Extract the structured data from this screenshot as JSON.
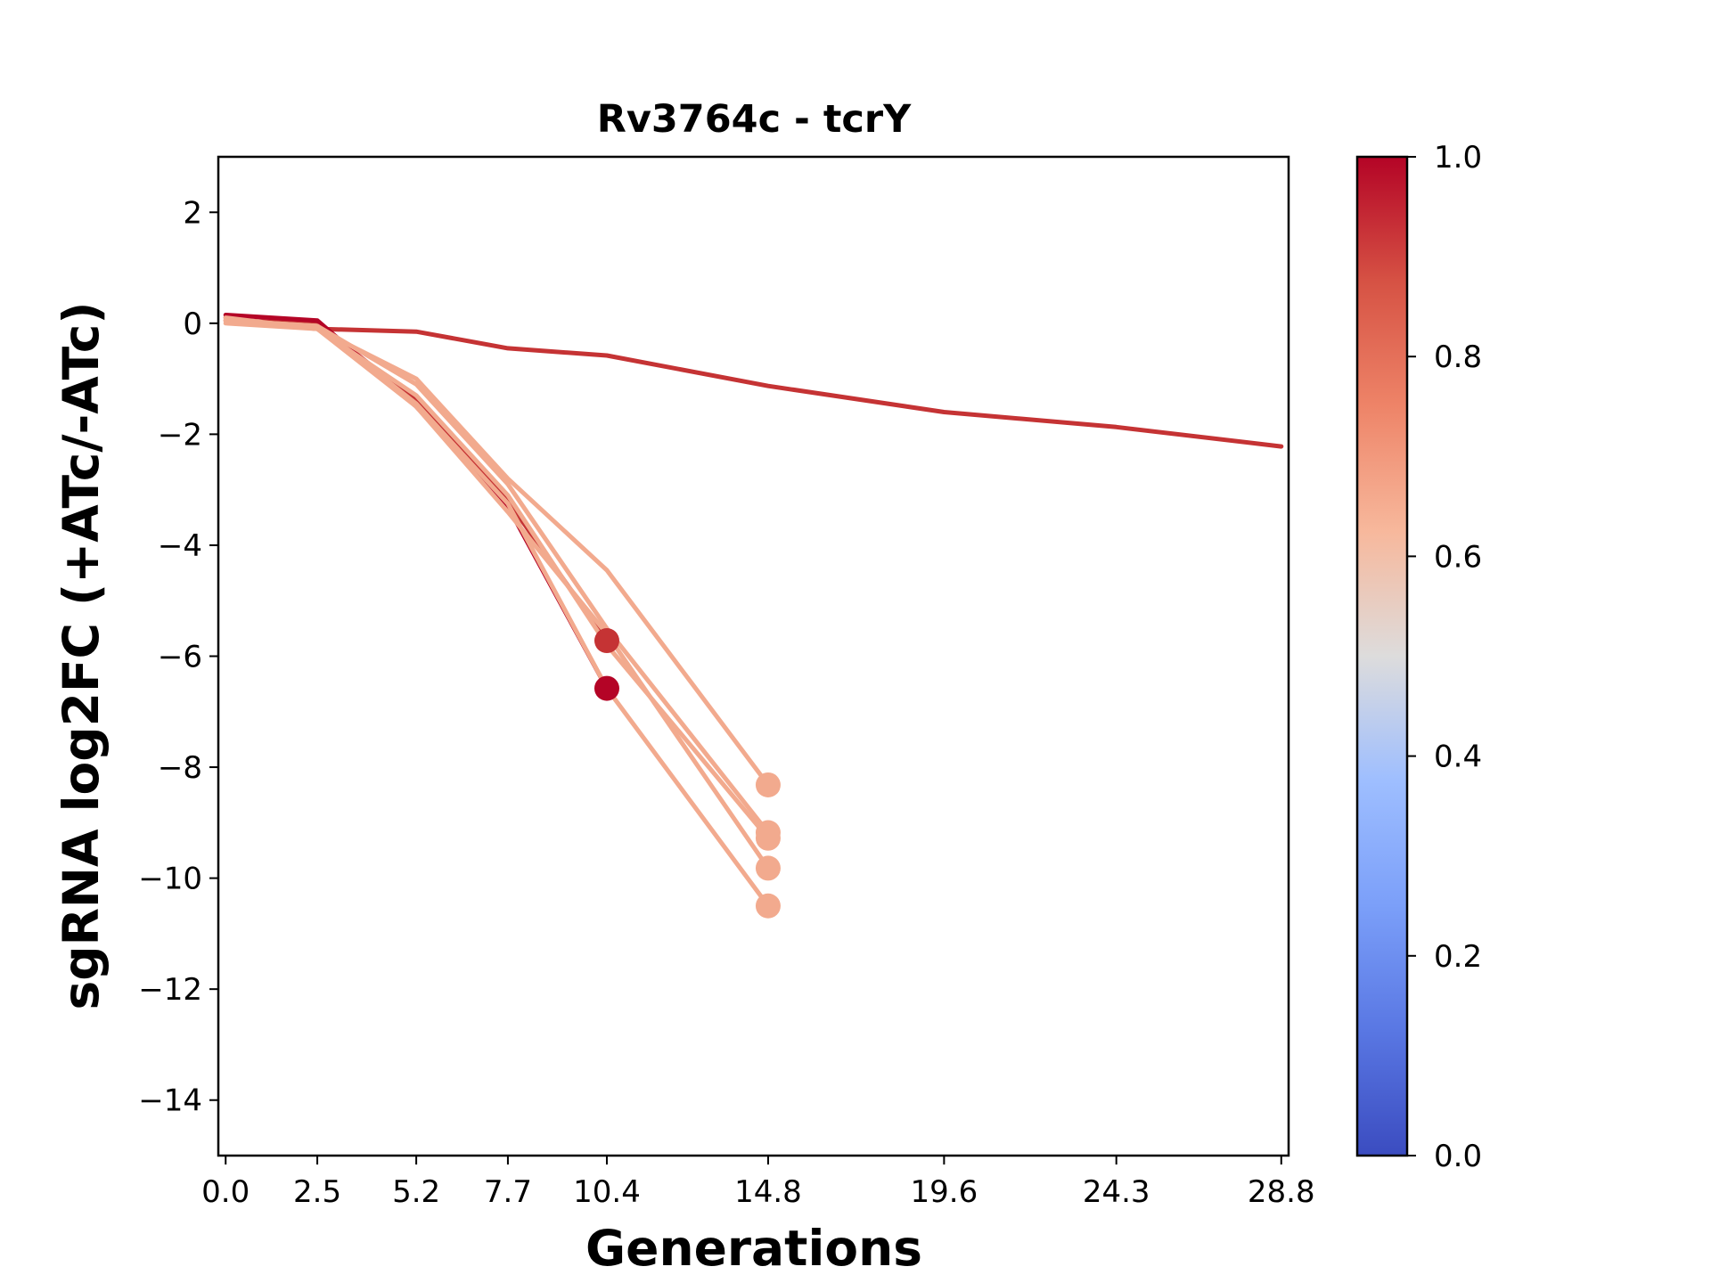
{
  "chart_data": {
    "type": "line",
    "title": "Rv3764c - tcrY",
    "xlabel": "Generations",
    "ylabel": "sgRNA log2FC (+ATc/-ATc)",
    "xticks": [
      0.0,
      2.5,
      5.2,
      7.7,
      10.4,
      14.8,
      19.6,
      24.3,
      28.8
    ],
    "xtick_labels": [
      "0.0",
      "2.5",
      "5.2",
      "7.7",
      "10.4",
      "14.8",
      "19.6",
      "24.3",
      "28.8"
    ],
    "yticks": [
      2,
      0,
      -2,
      -4,
      -6,
      -8,
      -10,
      -12,
      -14
    ],
    "ytick_labels": [
      "2",
      "0",
      "−2",
      "−4",
      "−6",
      "−8",
      "−10",
      "−12",
      "−14"
    ],
    "xlim": [
      -0.2,
      29.0
    ],
    "ylim": [
      -15,
      3
    ],
    "grid": false,
    "colorbar": {
      "min": 0.0,
      "max": 1.0,
      "ticks": [
        0.0,
        0.2,
        0.4,
        0.6,
        0.8,
        1.0
      ],
      "tick_labels": [
        "0.0",
        "0.2",
        "0.4",
        "0.6",
        "0.8",
        "1.0"
      ],
      "colormap": "coolwarm"
    },
    "series": [
      {
        "color": "#c53334",
        "x": [
          0.0,
          2.5,
          5.2,
          7.7,
          10.4,
          14.8,
          19.6,
          24.3,
          28.8
        ],
        "values": [
          0.1,
          -0.1,
          -0.15,
          -0.45,
          -0.58,
          -1.13,
          -1.6,
          -1.87,
          -2.22
        ],
        "end_marker": false
      },
      {
        "color": "#c53334",
        "x": [
          0.0,
          2.5,
          5.2,
          7.7,
          10.4
        ],
        "values": [
          0.05,
          0.0,
          -1.4,
          -3.2,
          -5.72
        ],
        "end_marker": true
      },
      {
        "color": "#b40426",
        "x": [
          0.0,
          2.5,
          5.2,
          7.7,
          10.4
        ],
        "values": [
          0.15,
          0.05,
          -1.5,
          -3.3,
          -6.58
        ],
        "end_marker": true
      },
      {
        "color": "#f2aa8e",
        "x": [
          0.0,
          2.5,
          5.2,
          7.7,
          10.4,
          14.8
        ],
        "values": [
          0.0,
          -0.1,
          -1.0,
          -2.8,
          -4.45,
          -8.32
        ],
        "end_marker": true
      },
      {
        "color": "#f2aa8e",
        "x": [
          0.0,
          2.5,
          5.2,
          7.7,
          10.4,
          14.8
        ],
        "values": [
          0.05,
          -0.05,
          -1.1,
          -2.9,
          -5.5,
          -9.18
        ],
        "end_marker": true
      },
      {
        "color": "#f2aa8e",
        "x": [
          0.0,
          2.5,
          5.2,
          7.7,
          10.4,
          14.8
        ],
        "values": [
          0.05,
          -0.1,
          -1.3,
          -3.1,
          -5.8,
          -9.28
        ],
        "end_marker": true
      },
      {
        "color": "#f2aa8e",
        "x": [
          0.0,
          2.5,
          5.2,
          7.7,
          10.4,
          14.8
        ],
        "values": [
          0.1,
          -0.1,
          -1.5,
          -3.4,
          -5.6,
          -9.82
        ],
        "end_marker": true
      },
      {
        "color": "#f2aa8e",
        "x": [
          0.0,
          2.5,
          5.2,
          7.7,
          10.4,
          14.8
        ],
        "values": [
          0.05,
          -0.05,
          -1.45,
          -3.25,
          -6.58,
          -10.5
        ],
        "end_marker": true
      }
    ]
  }
}
